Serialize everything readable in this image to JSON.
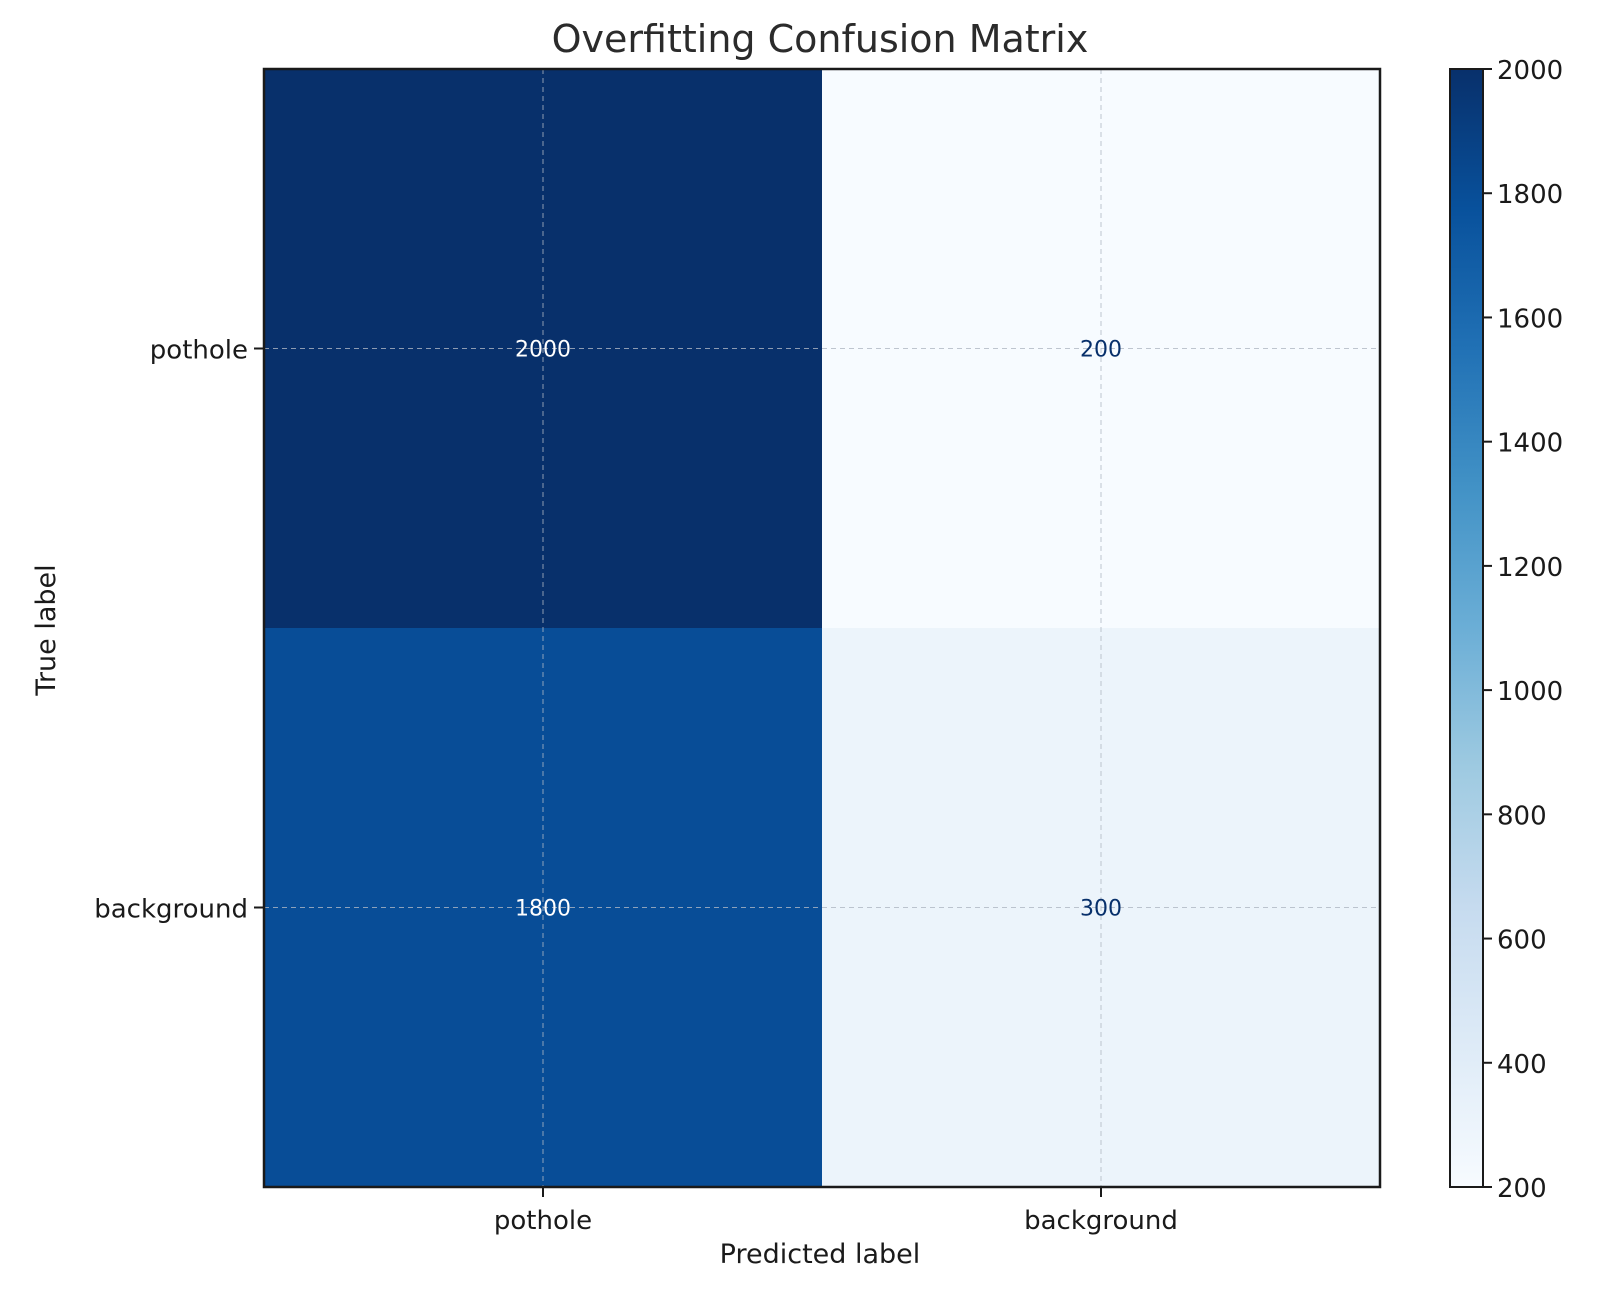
{
  "chart_data": {
    "type": "heatmap",
    "title": "Overfitting Confusion Matrix",
    "xlabel": "Predicted label",
    "ylabel": "True label",
    "x_categories": [
      "pothole",
      "background"
    ],
    "y_categories": [
      "pothole",
      "background"
    ],
    "values": [
      [
        2000,
        200
      ],
      [
        1800,
        300
      ]
    ],
    "cell_labels": [
      [
        "2000",
        "200"
      ],
      [
        "1800",
        "300"
      ]
    ],
    "colorbar": {
      "min": 200,
      "max": 2000,
      "ticks": [
        200,
        400,
        600,
        800,
        1000,
        1200,
        1400,
        1600,
        1800,
        2000
      ],
      "tick_labels": [
        "200",
        "400",
        "600",
        "800",
        "1000",
        "1200",
        "1400",
        "1600",
        "1800",
        "2000"
      ]
    },
    "colormap": "Blues",
    "grid": true,
    "colors": {
      "low": "#f7fbff",
      "high": "#08306b",
      "text_on_dark": "#ffffff",
      "text_on_light": "#08306b"
    }
  }
}
